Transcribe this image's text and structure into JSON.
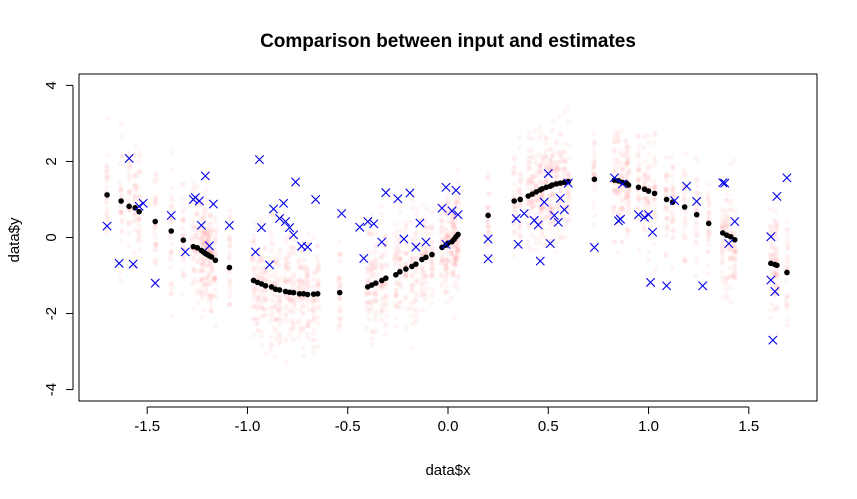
{
  "chart_data": {
    "type": "scatter",
    "title": "Comparison between input and estimates",
    "xlabel": "data$x",
    "ylabel": "data$y",
    "xlim": [
      -1.84,
      1.84
    ],
    "ylim": [
      -4.3,
      4.3
    ],
    "xticks": [
      -1.5,
      -1.0,
      -0.5,
      0.0,
      0.5,
      1.0,
      1.5
    ],
    "xtick_labels": [
      "-1.5",
      "-1.0",
      "-0.5",
      "0.0",
      "0.5",
      "1.0",
      "1.5"
    ],
    "yticks": [
      -4,
      -2,
      0,
      2,
      4
    ],
    "ytick_labels": [
      "-4",
      "-2",
      "0",
      "2",
      "4"
    ],
    "grid": false,
    "legend": "none",
    "series": [
      {
        "marker": "dot",
        "color": "#000000",
        "x": [
          -1.7,
          -1.63,
          -1.59,
          -1.56,
          -1.54,
          -1.46,
          -1.38,
          -1.32,
          -1.27,
          -1.25,
          -1.23,
          -1.22,
          -1.21,
          -1.2,
          -1.19,
          -1.18,
          -1.16,
          -1.09,
          -0.97,
          -0.95,
          -0.93,
          -0.91,
          -0.88,
          -0.86,
          -0.84,
          -0.81,
          -0.79,
          -0.77,
          -0.74,
          -0.72,
          -0.7,
          -0.67,
          -0.65,
          -0.54,
          -0.4,
          -0.38,
          -0.36,
          -0.33,
          -0.31,
          -0.26,
          -0.24,
          -0.21,
          -0.18,
          -0.16,
          -0.13,
          -0.11,
          -0.08,
          -0.03,
          -0.01,
          0.0,
          0.02,
          0.03,
          0.04,
          0.05,
          0.2,
          0.33,
          0.36,
          0.4,
          0.42,
          0.44,
          0.46,
          0.47,
          0.49,
          0.51,
          0.52,
          0.54,
          0.56,
          0.58,
          0.6,
          0.73,
          0.83,
          0.85,
          0.87,
          0.89,
          0.9,
          0.95,
          0.98,
          1.0,
          1.03,
          1.09,
          1.12,
          1.18,
          1.24,
          1.3,
          1.37,
          1.39,
          1.41,
          1.43,
          1.61,
          1.63,
          1.64,
          1.69
        ],
        "y": [
          1.12,
          0.96,
          0.82,
          0.78,
          0.68,
          0.42,
          0.17,
          -0.07,
          -0.24,
          -0.27,
          -0.34,
          -0.38,
          -0.42,
          -0.45,
          -0.48,
          -0.51,
          -0.6,
          -0.79,
          -1.13,
          -1.18,
          -1.22,
          -1.27,
          -1.3,
          -1.36,
          -1.38,
          -1.42,
          -1.44,
          -1.45,
          -1.48,
          -1.48,
          -1.5,
          -1.49,
          -1.48,
          -1.45,
          -1.3,
          -1.25,
          -1.2,
          -1.13,
          -1.07,
          -0.98,
          -0.9,
          -0.83,
          -0.76,
          -0.7,
          -0.58,
          -0.52,
          -0.45,
          -0.26,
          -0.2,
          -0.15,
          -0.11,
          -0.05,
          0.02,
          0.08,
          0.58,
          0.96,
          1.0,
          1.09,
          1.14,
          1.2,
          1.25,
          1.28,
          1.32,
          1.35,
          1.38,
          1.41,
          1.43,
          1.45,
          1.47,
          1.53,
          1.51,
          1.49,
          1.45,
          1.43,
          1.38,
          1.32,
          1.27,
          1.22,
          1.16,
          1.0,
          0.93,
          0.8,
          0.6,
          0.37,
          0.12,
          0.06,
          0.02,
          -0.06,
          -0.68,
          -0.71,
          -0.73,
          -0.92
        ]
      },
      {
        "marker": "x",
        "color": "#0000ee",
        "x": [
          -1.7,
          -1.64,
          -1.59,
          -1.57,
          -1.54,
          -1.52,
          -1.46,
          -1.38,
          -1.31,
          -1.27,
          -1.26,
          -1.24,
          -1.23,
          -1.21,
          -1.19,
          -1.17,
          -1.09,
          -0.96,
          -0.94,
          -0.93,
          -0.89,
          -0.87,
          -0.84,
          -0.82,
          -0.81,
          -0.79,
          -0.77,
          -0.76,
          -0.73,
          -0.7,
          -0.66,
          -0.53,
          -0.44,
          -0.42,
          -0.4,
          -0.37,
          -0.33,
          -0.31,
          -0.25,
          -0.22,
          -0.19,
          -0.16,
          -0.14,
          -0.11,
          -0.03,
          -0.01,
          -0.01,
          0.02,
          0.04,
          0.05,
          0.2,
          0.2,
          0.34,
          0.35,
          0.38,
          0.43,
          0.45,
          0.46,
          0.48,
          0.5,
          0.51,
          0.53,
          0.55,
          0.56,
          0.58,
          0.6,
          0.73,
          0.83,
          0.85,
          0.86,
          0.87,
          0.95,
          0.98,
          1.0,
          1.01,
          1.02,
          1.09,
          1.13,
          1.19,
          1.24,
          1.27,
          1.37,
          1.38,
          1.4,
          1.43,
          1.61,
          1.61,
          1.62,
          1.63,
          1.64,
          1.69
        ],
        "y": [
          0.3,
          -0.68,
          2.08,
          -0.7,
          0.82,
          0.9,
          -1.2,
          0.58,
          -0.38,
          1.0,
          1.05,
          0.96,
          0.32,
          1.62,
          -0.22,
          0.88,
          0.32,
          -0.38,
          2.05,
          0.26,
          -0.72,
          0.75,
          0.5,
          0.9,
          0.42,
          0.26,
          0.07,
          1.46,
          -0.23,
          -0.25,
          1.0,
          0.63,
          0.27,
          -0.55,
          0.42,
          0.36,
          -0.12,
          1.18,
          1.02,
          -0.04,
          1.17,
          -0.25,
          0.38,
          -0.12,
          0.77,
          1.32,
          -0.18,
          0.7,
          1.24,
          0.6,
          -0.04,
          -0.56,
          0.5,
          -0.18,
          0.63,
          0.45,
          0.33,
          -0.62,
          0.93,
          1.68,
          -0.16,
          0.58,
          0.4,
          1.03,
          0.73,
          1.43,
          -0.26,
          1.57,
          0.44,
          0.48,
          1.41,
          0.6,
          0.53,
          0.6,
          -1.18,
          0.14,
          -1.27,
          0.97,
          1.35,
          0.95,
          -1.27,
          1.44,
          1.43,
          -0.16,
          0.42,
          0.02,
          -1.12,
          -2.7,
          -1.42,
          1.08,
          1.57
        ]
      }
    ]
  }
}
